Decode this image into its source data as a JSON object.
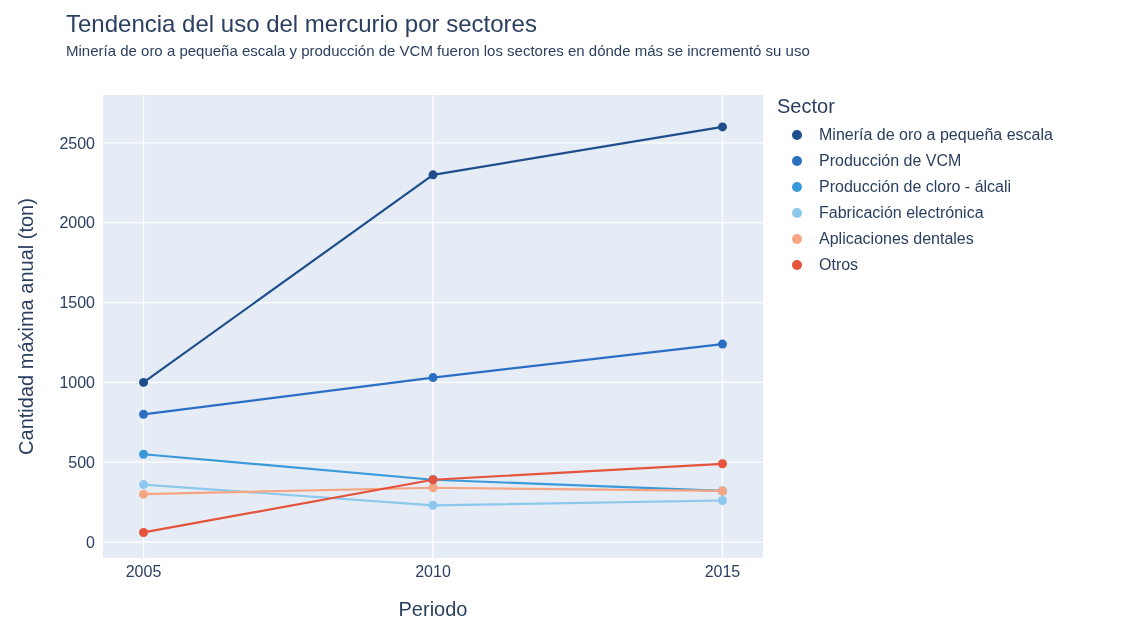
{
  "chart_data": {
    "type": "line",
    "title": "Tendencia del uso del mercurio por sectores",
    "subtitle": "Minería de oro a pequeña escala y producción de VCM fueron los sectores en dónde más se incrementó su uso",
    "xlabel": "Periodo",
    "ylabel": "Cantidad máxima anual (ton)",
    "legend_title": "Sector",
    "x": [
      2005,
      2010,
      2015
    ],
    "series": [
      {
        "name": "Minería de oro a pequeña escala",
        "color": "#1f4e8c",
        "values": [
          1000,
          2300,
          2600
        ]
      },
      {
        "name": "Producción de VCM",
        "color": "#2a6fc4",
        "values": [
          800,
          1030,
          1240
        ]
      },
      {
        "name": "Producción de cloro - álcali",
        "color": "#3a9ad9",
        "values": [
          550,
          390,
          320
        ]
      },
      {
        "name": "Fabricación electrónica",
        "color": "#8cc8ec",
        "values": [
          360,
          230,
          260
        ]
      },
      {
        "name": "Aplicaciones dentales",
        "color": "#f5a582",
        "values": [
          300,
          340,
          320
        ]
      },
      {
        "name": "Otros",
        "color": "#e5533d",
        "values": [
          60,
          390,
          490
        ]
      }
    ],
    "xlim": [
      2004.3,
      2015.7
    ],
    "xticks": [
      2005,
      2010,
      2015
    ],
    "ylim": [
      -100,
      2800
    ],
    "yticks": [
      0,
      500,
      1000,
      1500,
      2000,
      2500
    ],
    "grid": true,
    "legend": "right",
    "marker": "circle",
    "line_style": "solid"
  }
}
